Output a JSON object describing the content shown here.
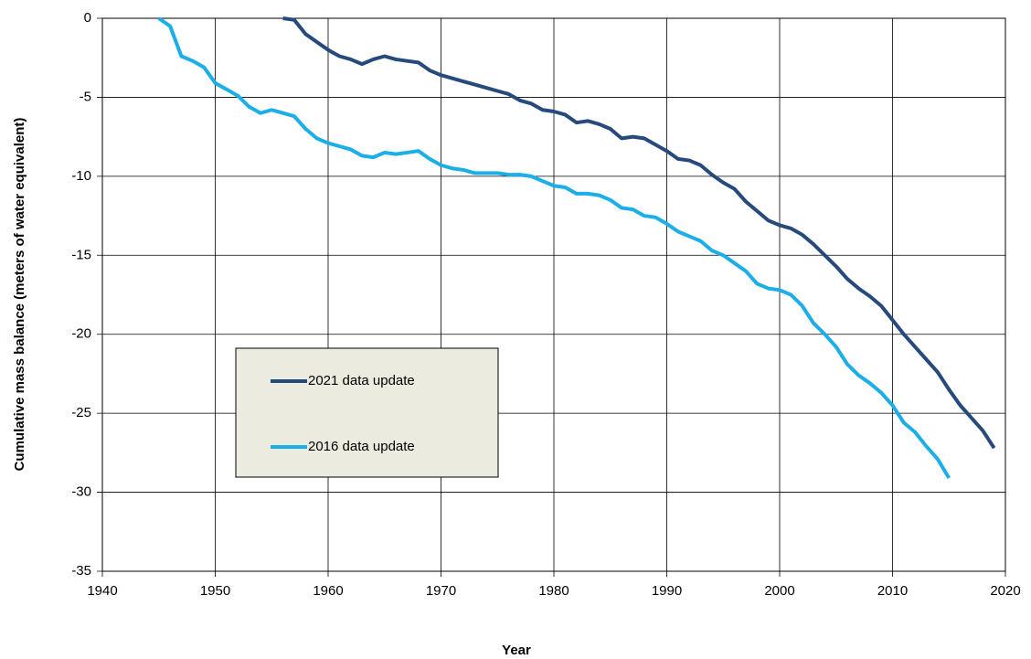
{
  "chart_data": {
    "type": "line",
    "xlabel": "Year",
    "ylabel": "Cumulative mass balance (meters of water equivalent)",
    "x": [
      1945,
      1946,
      1947,
      1948,
      1949,
      1950,
      1951,
      1952,
      1953,
      1954,
      1955,
      1956,
      1957,
      1958,
      1959,
      1960,
      1961,
      1962,
      1963,
      1964,
      1965,
      1966,
      1967,
      1968,
      1969,
      1970,
      1971,
      1972,
      1973,
      1974,
      1975,
      1976,
      1977,
      1978,
      1979,
      1980,
      1981,
      1982,
      1983,
      1984,
      1985,
      1986,
      1987,
      1988,
      1989,
      1990,
      1991,
      1992,
      1993,
      1994,
      1995,
      1996,
      1997,
      1998,
      1999,
      2000,
      2001,
      2002,
      2003,
      2004,
      2005,
      2006,
      2007,
      2008,
      2009,
      2010,
      2011,
      2012,
      2013,
      2014,
      2015,
      2016,
      2017,
      2018,
      2019
    ],
    "series": [
      {
        "name": "2021 data update",
        "color": "#274a7d",
        "values": [
          null,
          null,
          null,
          null,
          null,
          null,
          null,
          null,
          null,
          null,
          null,
          0,
          -0.1,
          -1.0,
          -1.5,
          -2.0,
          -2.4,
          -2.6,
          -2.9,
          -2.6,
          -2.4,
          -2.6,
          -2.7,
          -2.8,
          -3.3,
          -3.6,
          -3.8,
          -4.0,
          -4.2,
          -4.4,
          -4.6,
          -4.8,
          -5.2,
          -5.4,
          -5.8,
          -5.9,
          -6.1,
          -6.6,
          -6.5,
          -6.7,
          -7.0,
          -7.6,
          -7.5,
          -7.6,
          -8.0,
          -8.4,
          -8.9,
          -9.0,
          -9.3,
          -9.9,
          -10.4,
          -10.8,
          -11.6,
          -12.2,
          -12.8,
          -13.1,
          -13.3,
          -13.7,
          -14.3,
          -15.0,
          -15.7,
          -16.5,
          -17.1,
          -17.6,
          -18.2,
          -19.1,
          -20.0,
          -20.8,
          -21.6,
          -22.4,
          -23.5,
          -24.5,
          -25.3,
          -26.1,
          -27.2
        ]
      },
      {
        "name": "2016 data update",
        "color": "#1caee6",
        "values": [
          0,
          -0.5,
          -2.4,
          -2.7,
          -3.1,
          -4.1,
          -4.5,
          -4.9,
          -5.6,
          -6.0,
          -5.8,
          -6.0,
          -6.2,
          -7.0,
          -7.6,
          -7.9,
          -8.1,
          -8.3,
          -8.7,
          -8.8,
          -8.5,
          -8.6,
          -8.5,
          -8.4,
          -8.9,
          -9.3,
          -9.5,
          -9.6,
          -9.8,
          -9.8,
          -9.8,
          -9.9,
          -9.9,
          -10.0,
          -10.3,
          -10.6,
          -10.7,
          -11.1,
          -11.1,
          -11.2,
          -11.5,
          -12.0,
          -12.1,
          -12.5,
          -12.6,
          -13.0,
          -13.5,
          -13.8,
          -14.1,
          -14.7,
          -15.0,
          -15.5,
          -16.0,
          -16.8,
          -17.1,
          -17.2,
          -17.5,
          -18.2,
          -19.3,
          -20.0,
          -20.8,
          -21.9,
          -22.6,
          -23.1,
          -23.7,
          -24.5,
          -25.6,
          -26.2,
          -27.1,
          -27.9,
          -29.1,
          null,
          null,
          null,
          null
        ]
      }
    ],
    "xlim": [
      1940,
      2020
    ],
    "xticks": [
      1940,
      1950,
      1960,
      1970,
      1980,
      1990,
      2000,
      2010,
      2020
    ],
    "ylim": [
      -35,
      0
    ],
    "yticks": [
      -35,
      -30,
      -25,
      -20,
      -15,
      -10,
      -5,
      0
    ],
    "grid": true
  }
}
